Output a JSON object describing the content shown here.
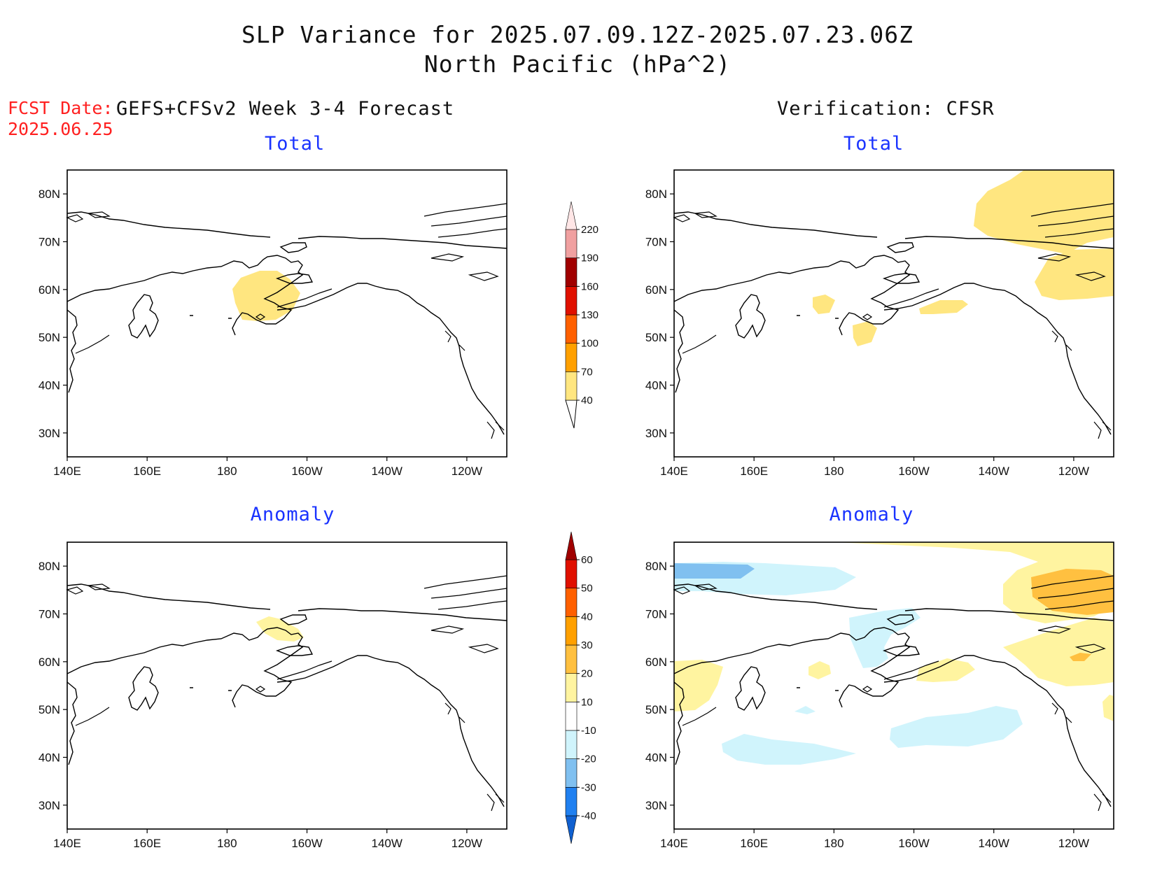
{
  "title": {
    "line1": "SLP Variance for 2025.07.09.12Z-2025.07.23.06Z",
    "line2": "North Pacific (hPa^2)"
  },
  "fcst_date": {
    "label": "FCST Date:",
    "value": "2025.06.25"
  },
  "column_headers": {
    "left": "GEFS+CFSv2 Week 3-4 Forecast",
    "right": "Verification: CFSR"
  },
  "panels": [
    {
      "id": "fcst-total",
      "subtitle": "Total"
    },
    {
      "id": "verif-total",
      "subtitle": "Total"
    },
    {
      "id": "fcst-anomaly",
      "subtitle": "Anomaly"
    },
    {
      "id": "verif-anomaly",
      "subtitle": "Anomaly"
    }
  ],
  "axes": {
    "lon_ticks": [
      "140E",
      "160E",
      "180",
      "160W",
      "140W",
      "120W"
    ],
    "lon_values": [
      140,
      160,
      180,
      200,
      220,
      240
    ],
    "lat_ticks": [
      "30N",
      "40N",
      "50N",
      "60N",
      "70N",
      "80N"
    ],
    "lat_values": [
      30,
      40,
      50,
      60,
      70,
      80
    ],
    "lon_range": [
      140,
      250
    ],
    "lat_range": [
      25,
      85
    ]
  },
  "colorbars": {
    "total": {
      "labels": [
        "40",
        "70",
        "100",
        "130",
        "160",
        "190",
        "220"
      ],
      "colors": [
        "#ffe680",
        "#ffa000",
        "#ff6000",
        "#e01000",
        "#a00000",
        "#f0a0a0",
        "#ffe6e6"
      ]
    },
    "anomaly": {
      "labels": [
        "-40",
        "-30",
        "-20",
        "-10",
        "10",
        "20",
        "30",
        "40",
        "50",
        "60"
      ],
      "colors": [
        "#1060d0",
        "#2080f0",
        "#80c0f0",
        "#d0f4fc",
        "#ffffff",
        "#fff4a0",
        "#ffc040",
        "#ffa000",
        "#ff6000",
        "#e01000",
        "#a00000"
      ]
    }
  },
  "colors": {
    "yellow_light": "#fff4a0",
    "yellow": "#ffe680",
    "orange_light": "#ffc040",
    "orange": "#ffa000",
    "blue_light": "#d0f4fc",
    "blue": "#80c0f0"
  }
}
